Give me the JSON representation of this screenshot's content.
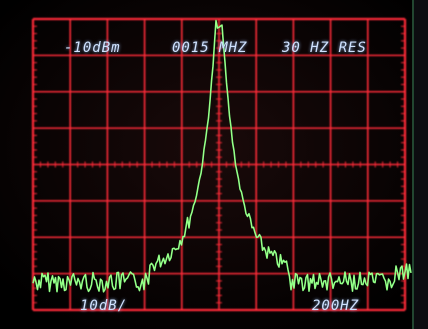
{
  "screen": {
    "ref_level": "-10dBm",
    "center_freq": "0015 MHZ",
    "resolution": "30 HZ RES",
    "vertical_scale": "10dB/",
    "horizontal_scale": "200HZ"
  },
  "colors": {
    "background": "#000000",
    "graticule": "#ff2b38",
    "trace": "#7dff7d",
    "text": "#cfe2ff"
  }
}
